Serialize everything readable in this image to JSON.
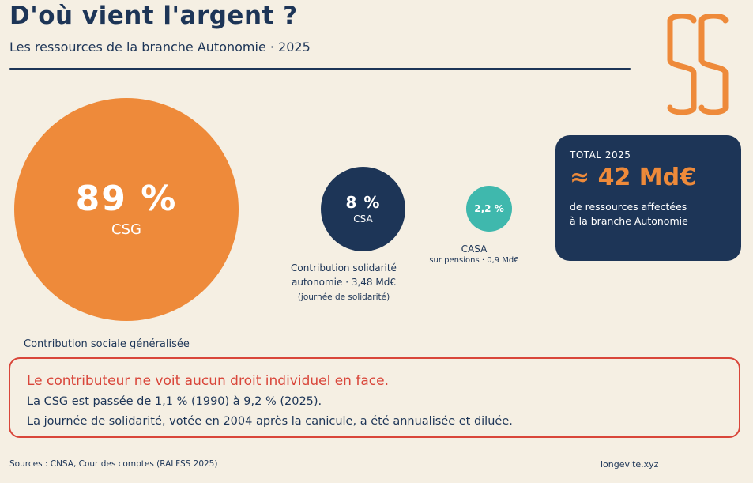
{
  "header": {
    "title": "D'où vient l'argent ?",
    "subtitle": "Les ressources de la branche Autonomie · 2025"
  },
  "colors": {
    "navy": "#1d3557",
    "orange": "#ee8a3a",
    "teal": "#3fb8ad",
    "red": "#d9463a",
    "background": "#f5efe3"
  },
  "logo": {
    "icon": "stacked-s-logo-icon"
  },
  "resources": {
    "csg": {
      "percent": "89 %",
      "label": "CSG",
      "share": 89,
      "description": "Contribution sociale généralisée"
    },
    "csa": {
      "percent": "8 %",
      "label": "CSA",
      "share": 8,
      "description": "Contribution solidarité autonomie · 3,48 Md€",
      "note": "(journée de solidarité)"
    },
    "casa": {
      "percent": "2,2 %",
      "label": "CASA",
      "share": 2.2,
      "description": "sur pensions · 0,9 Md€"
    }
  },
  "total": {
    "label": "TOTAL 2025",
    "value": "≈ 42 Md€",
    "description": "de ressources affectées à la branche Autonomie"
  },
  "callout": {
    "headline": "Le contributeur ne voit aucun droit individuel en face.",
    "lines": [
      "La CSG est passée de 1,1 % (1990) à 9,2 % (2025).",
      "La journée de solidarité, votée en 2004 après la canicule, a été annualisée et diluée."
    ]
  },
  "footer": {
    "sources": "Sources : CNSA, Cour des comptes (RALFSS 2025)",
    "site": "longevite.xyz"
  }
}
